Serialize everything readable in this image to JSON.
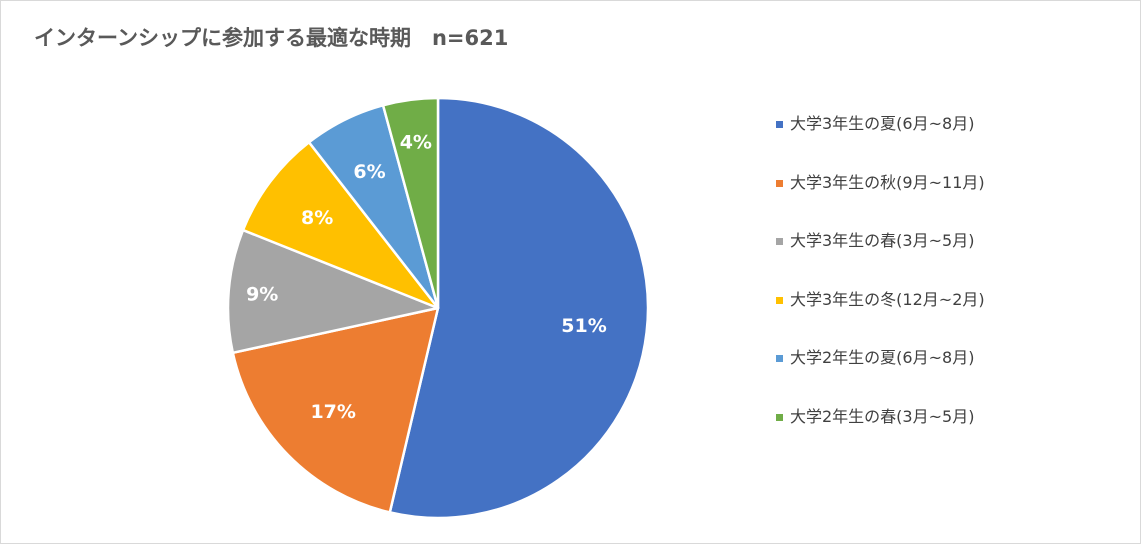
{
  "chart_data": {
    "type": "pie",
    "title": "インターンシップに参加する最適な時期　n=621",
    "categories": [
      "大学3年生の夏(6月~8月)",
      "大学3年生の秋(9月~11月)",
      "大学3年生の春(3月~5月)",
      "大学3年生の冬(12月~2月)",
      "大学2年生の夏(6月~8月)",
      "大学2年生の春(3月~5月)"
    ],
    "values": [
      51,
      17,
      9,
      8,
      6,
      4
    ],
    "data_labels": [
      "51%",
      "17%",
      "9%",
      "8%",
      "6%",
      "4%"
    ],
    "unit": "%",
    "colors": [
      "#4472c4",
      "#ed7d31",
      "#a5a5a5",
      "#ffc000",
      "#5b9bd5",
      "#70ad47"
    ],
    "legend_position": "right"
  }
}
